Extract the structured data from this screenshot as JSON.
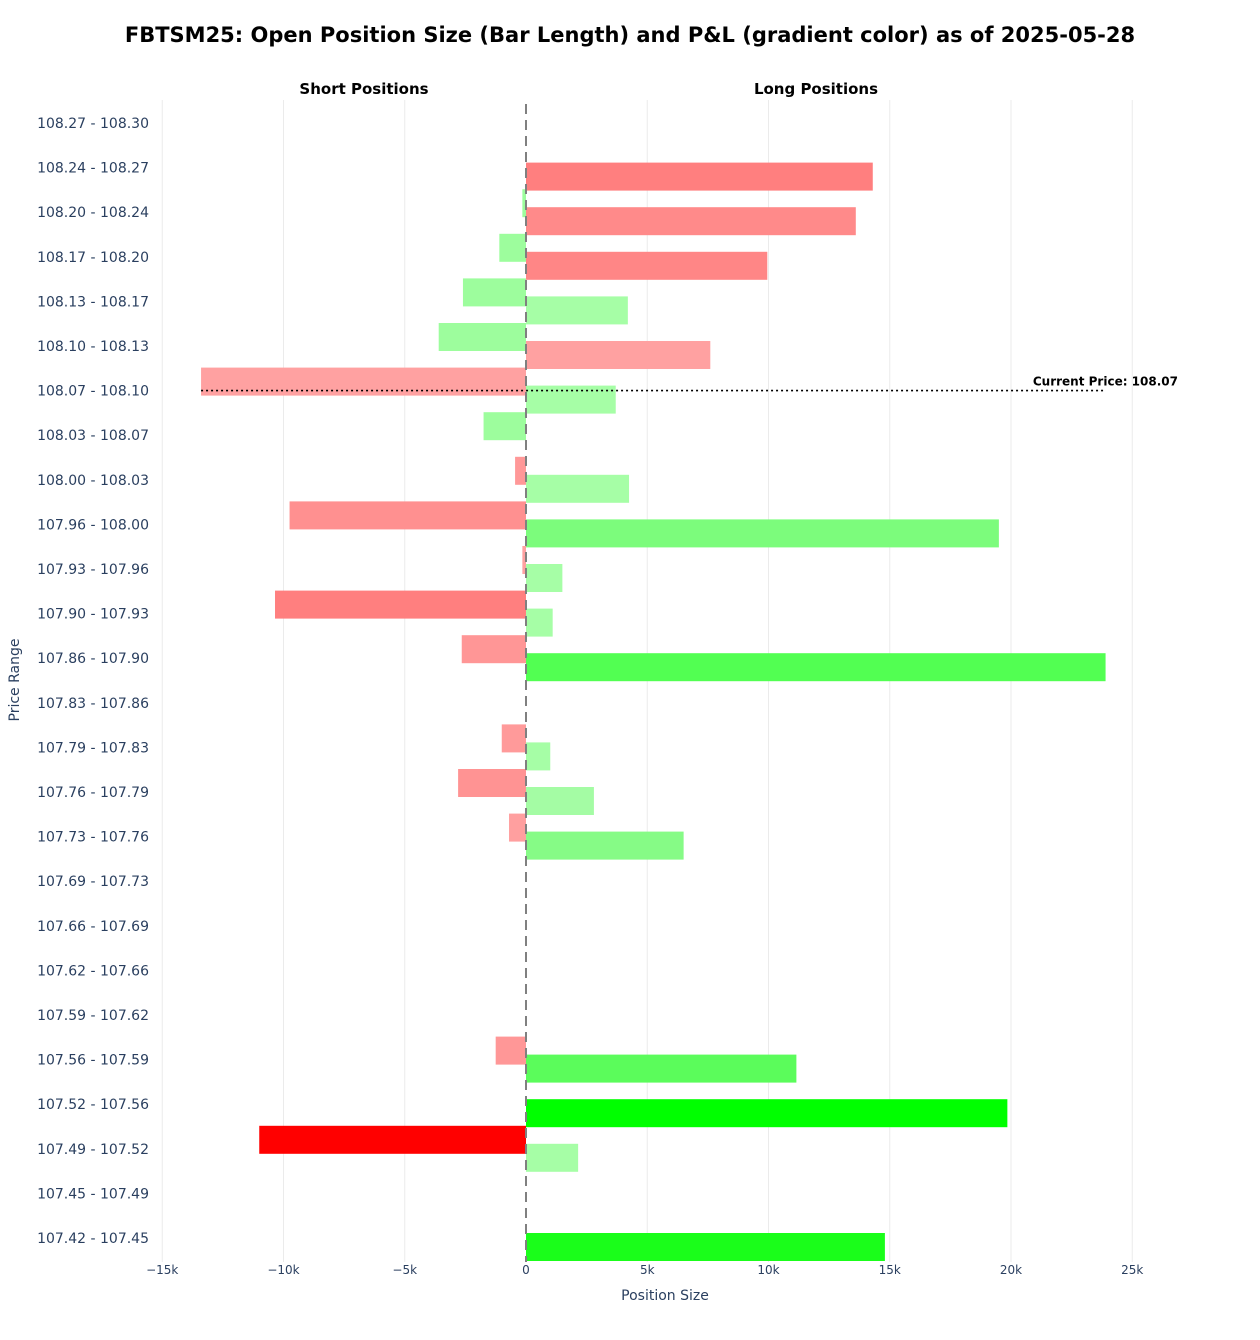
{
  "chart_data": {
    "type": "bar",
    "orientation": "horizontal-diverging",
    "title": "FBTSM25: Open Position Size (Bar Length) and P&L (gradient color) as of 2025-05-28",
    "subplot_titles": [
      "Short Positions",
      "Long Positions"
    ],
    "xlabel": "Position Size",
    "ylabel": "Price Range",
    "xlim": [
      -15000,
      25000
    ],
    "x_ticks": [
      -15000,
      -10000,
      -5000,
      0,
      5000,
      10000,
      15000,
      20000,
      25000
    ],
    "x_tick_labels": [
      "−15k",
      "−10k",
      "−5k",
      "0",
      "5k",
      "10k",
      "15k",
      "20k",
      "25k"
    ],
    "grid": true,
    "categories": [
      "108.27 - 108.30",
      "108.24 - 108.27",
      "108.20 - 108.24",
      "108.17 - 108.20",
      "108.13 - 108.17",
      "108.10 - 108.13",
      "108.07 - 108.10",
      "108.03 - 108.07",
      "108.00 - 108.03",
      "107.96 - 108.00",
      "107.93 - 107.96",
      "107.90 - 107.93",
      "107.86 - 107.90",
      "107.83 - 107.86",
      "107.79 - 107.83",
      "107.76 - 107.79",
      "107.73 - 107.76",
      "107.69 - 107.73",
      "107.66 - 107.69",
      "107.62 - 107.66",
      "107.59 - 107.62",
      "107.56 - 107.59",
      "107.52 - 107.56",
      "107.49 - 107.52",
      "107.45 - 107.49",
      "107.42 - 107.45"
    ],
    "series": [
      {
        "name": "Short Positions",
        "values": [
          0,
          0,
          -150,
          -1100,
          -2600,
          -3600,
          -13400,
          -1750,
          -450,
          -9750,
          -150,
          -10350,
          -2650,
          0,
          -1000,
          -2800,
          -700,
          0,
          0,
          0,
          0,
          -1250,
          0,
          -11000,
          0,
          0
        ],
        "colors": [
          "",
          "",
          "#9dfd9d",
          "#9dfd9d",
          "#9dfd9d",
          "#9dfd9d",
          "#ffa1a1",
          "#9dfd9d",
          "#ff9898",
          "#ff9090",
          "#ffa1a1",
          "#ff7f7f",
          "#ff9696",
          "",
          "#ff9a9a",
          "#ff9393",
          "#ff9f9f",
          "",
          "",
          "",
          "",
          "#ff9797",
          "",
          "#ff0000",
          "",
          ""
        ]
      },
      {
        "name": "Long Positions",
        "values": [
          0,
          14300,
          13600,
          9950,
          4200,
          7600,
          3700,
          0,
          4250,
          19500,
          1500,
          1100,
          23900,
          0,
          1000,
          2800,
          6500,
          0,
          0,
          0,
          0,
          11150,
          19850,
          2150,
          0,
          14800
        ],
        "colors": [
          "",
          "#ff7f7f",
          "#ff8a8a",
          "#ff8686",
          "#a6fea6",
          "#ffa1a1",
          "#a6fea6",
          "",
          "#a6fea6",
          "#7cfc7c",
          "#a6fea6",
          "#a6fea6",
          "#52ff52",
          "",
          "#a6fea6",
          "#a4fca4",
          "#86fb86",
          "",
          "",
          "",
          "",
          "#5bfc5b",
          "#00ff00",
          "#a6fea6",
          "",
          "#1afe1a"
        ]
      }
    ],
    "annotations": [
      {
        "text": "Current Price: 108.07",
        "y": 108.07
      }
    ]
  }
}
